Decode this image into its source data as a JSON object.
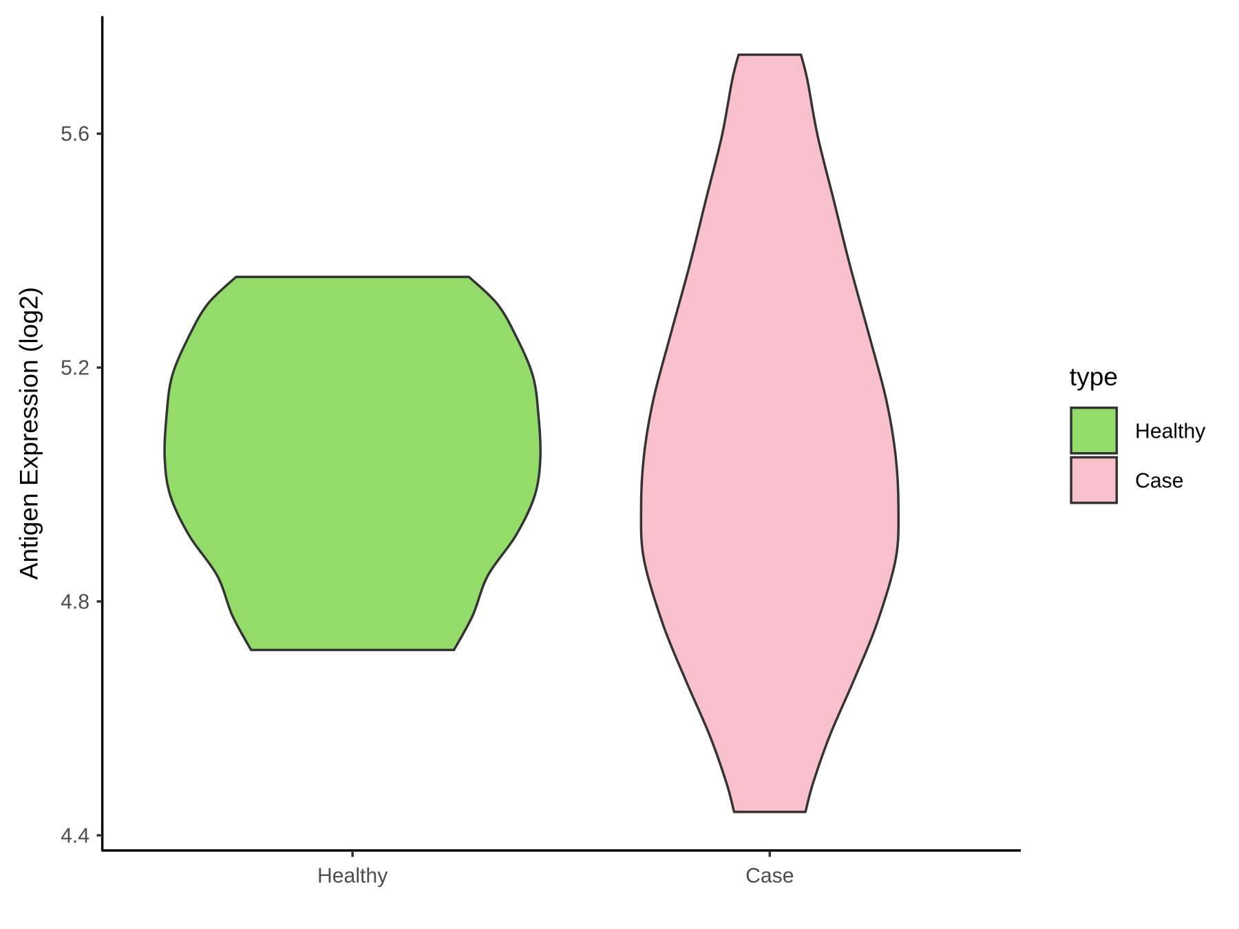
{
  "chart_data": {
    "type": "violin",
    "title": "",
    "xlabel": "",
    "ylabel": "Antigen Expression (log2)",
    "ylim": [
      4.37,
      5.8
    ],
    "yticks": [
      4.4,
      4.8,
      5.2,
      5.6
    ],
    "ytick_labels": [
      "4.4",
      "4.8",
      "5.2",
      "5.6"
    ],
    "categories": [
      "Healthy",
      "Case"
    ],
    "grid": false,
    "legend": {
      "title": "type",
      "position": "right",
      "entries": [
        "Healthy",
        "Case"
      ]
    },
    "series": [
      {
        "name": "Healthy",
        "color": "#93DC6A",
        "min": 4.717,
        "max": 5.355,
        "profile": [
          [
            5.355,
            0.62
          ],
          [
            5.309,
            0.77
          ],
          [
            5.254,
            0.87
          ],
          [
            5.186,
            0.96
          ],
          [
            5.118,
            0.99
          ],
          [
            5.046,
            1.0
          ],
          [
            4.981,
            0.97
          ],
          [
            4.913,
            0.87
          ],
          [
            4.844,
            0.72
          ],
          [
            4.776,
            0.64
          ],
          [
            4.717,
            0.54
          ]
        ]
      },
      {
        "name": "Case",
        "color": "#F7C0CB",
        "min": 4.44,
        "max": 5.735,
        "profile": [
          [
            5.735,
            0.166
          ],
          [
            5.692,
            0.2
          ],
          [
            5.596,
            0.255
          ],
          [
            5.487,
            0.34
          ],
          [
            5.377,
            0.425
          ],
          [
            5.254,
            0.53
          ],
          [
            5.145,
            0.62
          ],
          [
            5.049,
            0.67
          ],
          [
            4.96,
            0.685
          ],
          [
            4.872,
            0.67
          ],
          [
            4.762,
            0.57
          ],
          [
            4.667,
            0.45
          ],
          [
            4.571,
            0.32
          ],
          [
            4.489,
            0.23
          ],
          [
            4.44,
            0.19
          ]
        ]
      }
    ]
  }
}
